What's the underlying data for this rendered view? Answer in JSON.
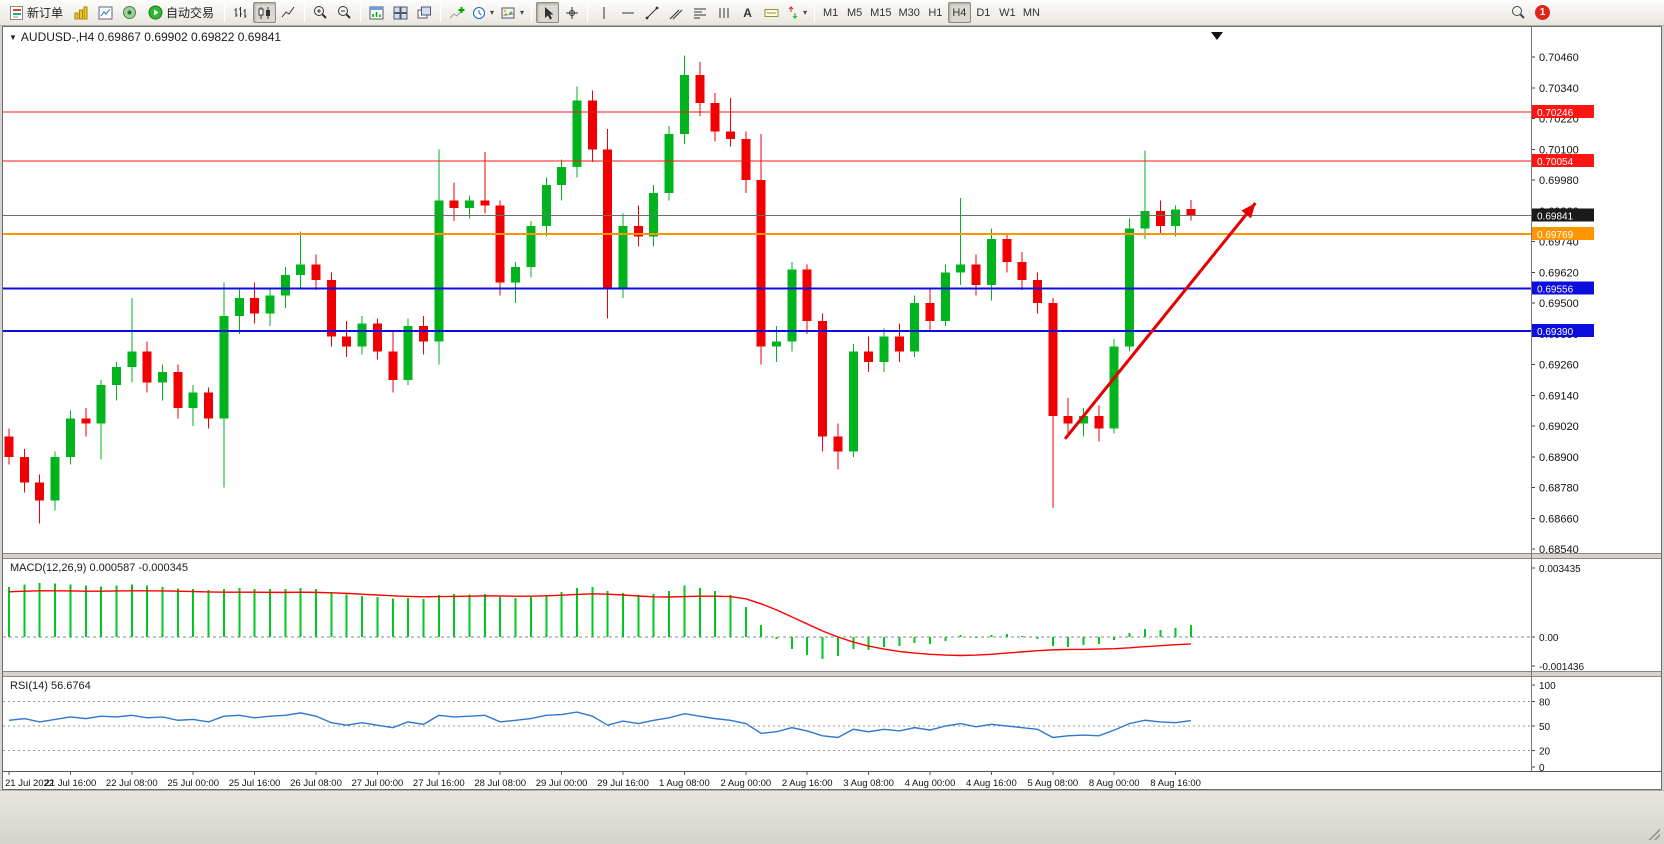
{
  "toolbar": {
    "new_order_label": "新订单",
    "autotrade_label": "自动交易",
    "tf": [
      "M1",
      "M5",
      "M15",
      "M30",
      "H1",
      "H4",
      "D1",
      "W1",
      "MN"
    ],
    "active_timeframe": "H4",
    "notification": {
      "count": "1",
      "color": "#e2231a"
    }
  },
  "chart": {
    "title": "AUDUSD-,H4 0.69867 0.69902 0.69822 0.69841",
    "symbol": "AUDUSD-",
    "period": "H4",
    "ohlc": {
      "open": "0.69867",
      "high": "0.69902",
      "low": "0.69822",
      "close": "0.69841"
    },
    "macd_label": "MACD(12,26,9) 0.000587 -0.000345",
    "rsi_label": "RSI(14) 56.6764",
    "price_ticks": [
      "0.70460",
      "0.70340",
      "0.70220",
      "0.70100",
      "0.69980",
      "0.69860",
      "0.69740",
      "0.69620",
      "0.69500",
      "0.69380",
      "0.69260",
      "0.69140",
      "0.69020",
      "0.68900",
      "0.68780",
      "0.68660",
      "0.68540"
    ],
    "hlines": [
      {
        "price": 0.70246,
        "label": "0.70246",
        "line": "#ff1414",
        "badge": "#ff1414",
        "w": 1
      },
      {
        "price": 0.70054,
        "label": "0.70054",
        "line": "#ff1414",
        "badge": "#ff1414",
        "w": 1
      },
      {
        "price": 0.69841,
        "label": "0.69841",
        "line": "#6e6e6e",
        "badge": "#1a1a1a",
        "w": 1
      },
      {
        "price": 0.69769,
        "label": "0.69769",
        "line": "#ff9500",
        "badge": "#ff9500",
        "w": 2
      },
      {
        "price": 0.69556,
        "label": "0.69556",
        "line": "#0d0dde",
        "badge": "#0d0dde",
        "w": 2
      },
      {
        "price": 0.6939,
        "label": "0.69390",
        "line": "#0d0dde",
        "badge": "#0d0dde",
        "w": 2
      }
    ],
    "arrow": {
      "x1_bar": 68.8,
      "y1_price": 0.6897,
      "x2_bar": 81.2,
      "y2_price": 0.6989
    },
    "colors": {
      "bull": "#00b41e",
      "bear": "#f00000",
      "macd_hist": "#00c81e",
      "macd_signal": "#ff0000",
      "rsi_line": "#2e78d2",
      "arrow": "#e60000"
    }
  },
  "chart_data": {
    "type": "candlestick",
    "symbol": "AUDUSD-",
    "timeframe": "H4",
    "ylim": [
      0.6853,
      0.7057
    ],
    "y_ticks": [
      0.7046,
      0.7034,
      0.7022,
      0.701,
      0.6998,
      0.6986,
      0.6974,
      0.6962,
      0.695,
      0.6938,
      0.6926,
      0.6914,
      0.6902,
      0.689,
      0.6878,
      0.6866,
      0.6854
    ],
    "x_label_every_n_bars": 4,
    "x_labels": [
      "21 Jul 2022",
      "21 Jul 16:00",
      "22 Jul 08:00",
      "25 Jul 00:00",
      "25 Jul 16:00",
      "26 Jul 08:00",
      "27 Jul 00:00",
      "27 Jul 16:00",
      "28 Jul 08:00",
      "29 Jul 00:00",
      "29 Jul 16:00",
      "1 Aug 08:00",
      "2 Aug 00:00",
      "2 Aug 16:00",
      "3 Aug 08:00",
      "4 Aug 00:00",
      "4 Aug 16:00",
      "5 Aug 08:00",
      "8 Aug 00:00",
      "8 Aug 16:00"
    ],
    "candles_ohlc": [
      [
        0.6898,
        0.6901,
        0.6887,
        0.689
      ],
      [
        0.689,
        0.6893,
        0.6876,
        0.688
      ],
      [
        0.688,
        0.6883,
        0.6864,
        0.6873
      ],
      [
        0.6873,
        0.6892,
        0.6869,
        0.689
      ],
      [
        0.689,
        0.6908,
        0.6887,
        0.6905
      ],
      [
        0.6905,
        0.6909,
        0.6898,
        0.6903
      ],
      [
        0.6903,
        0.692,
        0.6889,
        0.6918
      ],
      [
        0.6918,
        0.6927,
        0.6912,
        0.6925
      ],
      [
        0.6925,
        0.6952,
        0.6919,
        0.6931
      ],
      [
        0.6931,
        0.6935,
        0.6915,
        0.6919
      ],
      [
        0.6919,
        0.6926,
        0.6912,
        0.6923
      ],
      [
        0.6923,
        0.6926,
        0.6905,
        0.6909
      ],
      [
        0.6909,
        0.6918,
        0.6902,
        0.6915
      ],
      [
        0.6915,
        0.6917,
        0.6901,
        0.6905
      ],
      [
        0.6905,
        0.6958,
        0.6878,
        0.6945
      ],
      [
        0.6945,
        0.6956,
        0.6938,
        0.6952
      ],
      [
        0.6952,
        0.6958,
        0.6942,
        0.6946
      ],
      [
        0.6946,
        0.6956,
        0.6941,
        0.6953
      ],
      [
        0.6953,
        0.6964,
        0.6948,
        0.6961
      ],
      [
        0.6961,
        0.6978,
        0.6956,
        0.6965
      ],
      [
        0.6965,
        0.6969,
        0.6955,
        0.6959
      ],
      [
        0.6959,
        0.6962,
        0.6933,
        0.6937
      ],
      [
        0.6937,
        0.6943,
        0.6929,
        0.6933
      ],
      [
        0.6933,
        0.6945,
        0.693,
        0.6942
      ],
      [
        0.6942,
        0.6944,
        0.6928,
        0.6931
      ],
      [
        0.6931,
        0.6939,
        0.6915,
        0.692
      ],
      [
        0.692,
        0.6944,
        0.6918,
        0.6941
      ],
      [
        0.6941,
        0.6945,
        0.693,
        0.6935
      ],
      [
        0.6935,
        0.701,
        0.6926,
        0.699
      ],
      [
        0.699,
        0.6997,
        0.6982,
        0.6987
      ],
      [
        0.6987,
        0.6992,
        0.6983,
        0.699
      ],
      [
        0.699,
        0.7009,
        0.6985,
        0.6988
      ],
      [
        0.6988,
        0.699,
        0.6953,
        0.6958
      ],
      [
        0.6958,
        0.6966,
        0.695,
        0.6964
      ],
      [
        0.6964,
        0.6982,
        0.696,
        0.698
      ],
      [
        0.698,
        0.6999,
        0.6976,
        0.6996
      ],
      [
        0.6996,
        0.7006,
        0.699,
        0.7003
      ],
      [
        0.7003,
        0.70345,
        0.6999,
        0.7029
      ],
      [
        0.7029,
        0.7033,
        0.7005,
        0.701
      ],
      [
        0.701,
        0.7018,
        0.6944,
        0.6956
      ],
      [
        0.6956,
        0.6985,
        0.6952,
        0.698
      ],
      [
        0.698,
        0.6988,
        0.6972,
        0.6976
      ],
      [
        0.6976,
        0.6996,
        0.6972,
        0.6993
      ],
      [
        0.6993,
        0.7019,
        0.699,
        0.7016
      ],
      [
        0.7016,
        0.70465,
        0.7012,
        0.7039
      ],
      [
        0.7039,
        0.7044,
        0.7023,
        0.7028
      ],
      [
        0.7028,
        0.7032,
        0.7013,
        0.7017
      ],
      [
        0.7017,
        0.703,
        0.7011,
        0.7014
      ],
      [
        0.7014,
        0.7017,
        0.6993,
        0.6998
      ],
      [
        0.6998,
        0.7016,
        0.6926,
        0.6933
      ],
      [
        0.6933,
        0.6941,
        0.6927,
        0.6935
      ],
      [
        0.6935,
        0.6966,
        0.6931,
        0.6963
      ],
      [
        0.6963,
        0.6965,
        0.6938,
        0.6943
      ],
      [
        0.6943,
        0.6946,
        0.6892,
        0.6898
      ],
      [
        0.6898,
        0.6903,
        0.6885,
        0.6892
      ],
      [
        0.6892,
        0.6934,
        0.689,
        0.6931
      ],
      [
        0.6931,
        0.6937,
        0.6923,
        0.6927
      ],
      [
        0.6927,
        0.694,
        0.6923,
        0.6937
      ],
      [
        0.6937,
        0.6942,
        0.6927,
        0.6931
      ],
      [
        0.6931,
        0.6953,
        0.6929,
        0.695
      ],
      [
        0.695,
        0.6956,
        0.6939,
        0.6943
      ],
      [
        0.6943,
        0.6965,
        0.6941,
        0.6962
      ],
      [
        0.6962,
        0.6991,
        0.6957,
        0.6965
      ],
      [
        0.6965,
        0.6969,
        0.6953,
        0.6957
      ],
      [
        0.6957,
        0.6979,
        0.6951,
        0.6975
      ],
      [
        0.6975,
        0.6977,
        0.6962,
        0.6966
      ],
      [
        0.6966,
        0.697,
        0.6955,
        0.6959
      ],
      [
        0.6959,
        0.6962,
        0.6946,
        0.695
      ],
      [
        0.695,
        0.6952,
        0.687,
        0.6906
      ],
      [
        0.6906,
        0.6913,
        0.6899,
        0.6903
      ],
      [
        0.6903,
        0.6909,
        0.6898,
        0.6906
      ],
      [
        0.6906,
        0.691,
        0.6896,
        0.6901
      ],
      [
        0.6901,
        0.6936,
        0.6899,
        0.6933
      ],
      [
        0.6933,
        0.6983,
        0.6931,
        0.6979
      ],
      [
        0.6979,
        0.70095,
        0.6975,
        0.6986
      ],
      [
        0.6986,
        0.699,
        0.6977,
        0.698
      ],
      [
        0.698,
        0.6988,
        0.6976,
        0.69865
      ],
      [
        0.69867,
        0.69902,
        0.69822,
        0.69841
      ]
    ],
    "indicators": [
      {
        "type": "macd-histogram",
        "name": "MACD(12,26,9)",
        "current_main": "0.000587",
        "current_signal": "-0.000345",
        "ticks": [
          "0.003435",
          "0.00",
          "-0.001436"
        ],
        "histogram": [
          0.0025,
          0.00262,
          0.00268,
          0.00265,
          0.0026,
          0.00255,
          0.00252,
          0.00255,
          0.0026,
          0.00256,
          0.0025,
          0.00242,
          0.00238,
          0.00235,
          0.0024,
          0.00244,
          0.0024,
          0.00238,
          0.0024,
          0.00245,
          0.00238,
          0.00225,
          0.00212,
          0.00205,
          0.002,
          0.00192,
          0.00195,
          0.0019,
          0.0021,
          0.00215,
          0.00212,
          0.00215,
          0.002,
          0.00195,
          0.002,
          0.0021,
          0.00225,
          0.00245,
          0.0025,
          0.0023,
          0.0022,
          0.0021,
          0.00215,
          0.0023,
          0.00255,
          0.00245,
          0.0023,
          0.0021,
          0.0015,
          0.0006,
          -0.0001,
          -0.0006,
          -0.0009,
          -0.0011,
          -0.00095,
          -0.0006,
          -0.00065,
          -0.0005,
          -0.00045,
          -0.0003,
          -0.00035,
          -0.0002,
          0.0001,
          -5e-05,
          0.0001,
          0.00015,
          5e-05,
          -0.0001,
          -0.00045,
          -0.0005,
          -0.0004,
          -0.00035,
          -0.00015,
          0.0002,
          0.0004,
          0.00035,
          0.00045,
          0.000587
        ],
        "signal": [
          0.00225,
          0.00228,
          0.0023,
          0.0023,
          0.00229,
          0.00228,
          0.00228,
          0.00229,
          0.0023,
          0.0023,
          0.00229,
          0.00228,
          0.00226,
          0.00224,
          0.00223,
          0.00223,
          0.00223,
          0.00222,
          0.00222,
          0.00223,
          0.00222,
          0.0022,
          0.00217,
          0.00213,
          0.00209,
          0.00205,
          0.00202,
          0.002,
          0.00201,
          0.00202,
          0.00203,
          0.00205,
          0.00204,
          0.00203,
          0.00203,
          0.00205,
          0.00208,
          0.00212,
          0.00215,
          0.00213,
          0.00209,
          0.00204,
          0.002,
          0.00199,
          0.00201,
          0.00203,
          0.00203,
          0.00201,
          0.0019,
          0.00165,
          0.00135,
          0.001,
          0.00065,
          0.0003,
          0.0,
          -0.00025,
          -0.00045,
          -0.0006,
          -0.00072,
          -0.0008,
          -0.00086,
          -0.0009,
          -0.00092,
          -0.0009,
          -0.00086,
          -0.0008,
          -0.00074,
          -0.00068,
          -0.00064,
          -0.00062,
          -0.00062,
          -0.0006,
          -0.00058,
          -0.00054,
          -0.00048,
          -0.00043,
          -0.00038,
          -0.000345
        ]
      },
      {
        "type": "rsi",
        "name": "RSI(14)",
        "current": "56.6764",
        "range": [
          0,
          100
        ],
        "levels": [
          80,
          50,
          20
        ],
        "ticks": [
          "100",
          "80",
          "50",
          "20",
          "0"
        ],
        "values": [
          57,
          59,
          55,
          58,
          61,
          59,
          62,
          61,
          63,
          60,
          61,
          57,
          58,
          55,
          62,
          63,
          60,
          62,
          63,
          66,
          62,
          54,
          51,
          54,
          51,
          48,
          55,
          52,
          63,
          61,
          62,
          63,
          55,
          57,
          59,
          63,
          64,
          67,
          62,
          51,
          56,
          53,
          57,
          60,
          65,
          62,
          59,
          57,
          53,
          41,
          43,
          48,
          44,
          38,
          36,
          46,
          43,
          46,
          44,
          48,
          45,
          50,
          53,
          49,
          52,
          50,
          48,
          46,
          36,
          38,
          39,
          38,
          45,
          53,
          57,
          55,
          54,
          56.6764
        ]
      }
    ]
  }
}
